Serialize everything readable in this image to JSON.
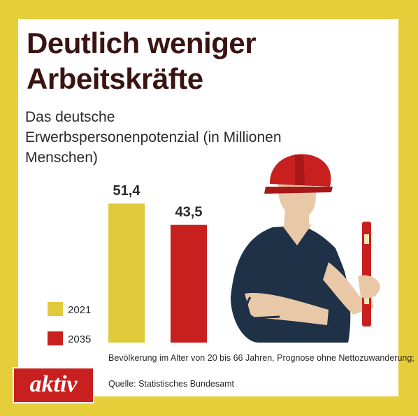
{
  "title": "Deutlich weniger Arbeitskräfte",
  "subtitle": "Das deutsche Erwerbspersonenpotenzial (in Millionen Menschen)",
  "note": "Bevölkerung im Alter von 20 bis 66 Jahren, Prognose ohne Nettozuwanderung;",
  "source": "Quelle: Statistisches Bundesamt",
  "logo": "aktiv",
  "colors": {
    "frame": "#e6cd3a",
    "bar_2021": "#e0ca3c",
    "bar_2035": "#c8201f",
    "title": "#3a1412"
  },
  "illustration": "construction-worker-with-level",
  "chart_data": {
    "type": "bar",
    "title": "Deutlich weniger Arbeitskräfte",
    "subtitle": "Das deutsche Erwerbspersonenpotenzial (in Millionen Menschen)",
    "categories": [
      "2021",
      "2035"
    ],
    "values": [
      51.4,
      43.5
    ],
    "value_labels": [
      "51,4",
      "43,5"
    ],
    "colors": [
      "#e0ca3c",
      "#c8201f"
    ],
    "legend": [
      "2021",
      "2035"
    ],
    "legend_position": "bottom-left",
    "grid": false,
    "ylim": [
      0,
      60
    ]
  }
}
